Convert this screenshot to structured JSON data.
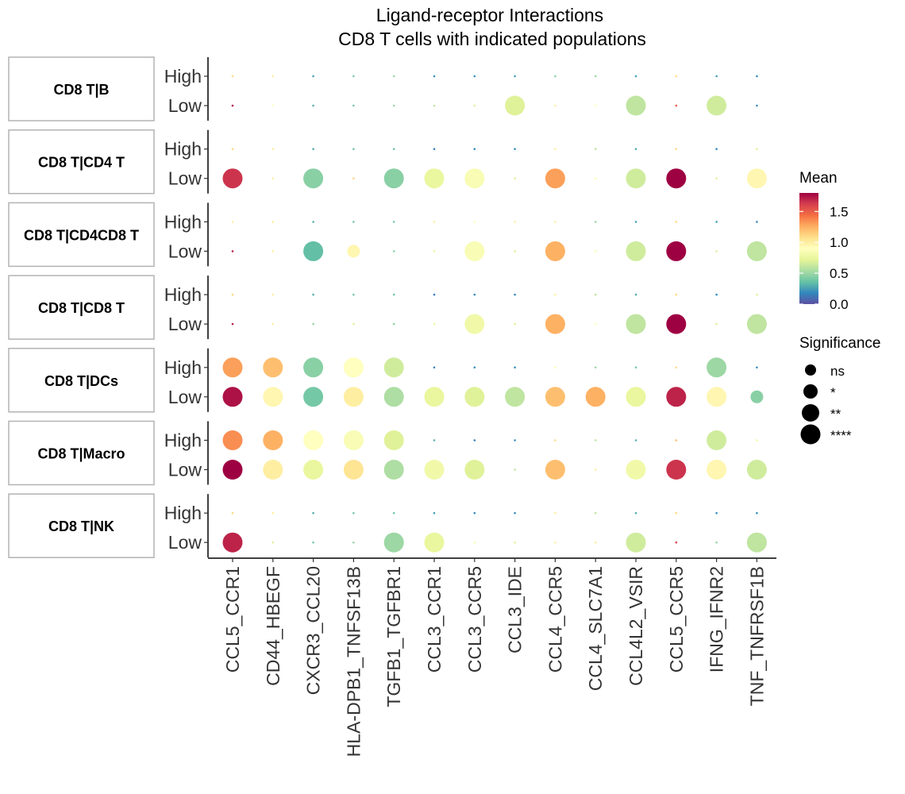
{
  "chart_data": {
    "type": "dot",
    "title": "Ligand-receptor Interactions",
    "subtitle": "CD8 T cells with indicated populations",
    "panels": [
      "CD8 T|B",
      "CD8 T|CD4 T",
      "CD8 T|CD4CD8 T",
      "CD8 T|CD8 T",
      "CD8 T|DCs",
      "CD8 T|Macro",
      "CD8 T|NK"
    ],
    "y_categories": [
      "High",
      "Low"
    ],
    "x_categories": [
      "CCL5_CCR1",
      "CD44_HBEGF",
      "CXCR3_CCL20",
      "HLA-DPB1_TNFSF13B",
      "TGFB1_TGFBR1",
      "CCL3_CCR1",
      "CCL3_CCR5",
      "CCL3_IDE",
      "CCL4_CCR5",
      "CCL4_SLC7A1",
      "CCL4L2_VSIR",
      "CCL5_CCR5",
      "IFNG_IFNR2",
      "TNF_TNFRSF1B"
    ],
    "mean": {
      "CD8 T|B": {
        "High": [
          1.1,
          1.0,
          0.25,
          0.4,
          0.5,
          0.2,
          0.2,
          0.25,
          0.45,
          0.5,
          0.25,
          1.1,
          0.25,
          0.2
        ],
        "Low": [
          1.75,
          0.9,
          0.3,
          0.4,
          0.5,
          0.6,
          0.7,
          0.7,
          1.0,
          0.9,
          0.6,
          1.5,
          0.65,
          0.2
        ]
      },
      "CD8 T|CD4 T": {
        "High": [
          1.1,
          1.0,
          0.3,
          0.4,
          0.4,
          0.15,
          0.2,
          0.2,
          1.0,
          0.6,
          0.3,
          1.1,
          0.2,
          0.7
        ],
        "Low": [
          1.65,
          1.0,
          0.45,
          1.1,
          0.45,
          0.75,
          0.85,
          0.7,
          1.3,
          0.9,
          0.65,
          1.8,
          0.7,
          0.95
        ]
      },
      "CD8 T|CD4CD8 T": {
        "High": [
          1.0,
          1.0,
          0.3,
          0.4,
          0.4,
          1.0,
          0.9,
          1.0,
          1.0,
          0.5,
          0.25,
          1.1,
          0.25,
          0.2
        ],
        "Low": [
          1.7,
          1.0,
          0.35,
          0.95,
          0.45,
          0.75,
          0.85,
          0.7,
          1.25,
          0.85,
          0.65,
          1.8,
          0.7,
          0.6
        ]
      },
      "CD8 T|CD8 T": {
        "High": [
          1.1,
          1.0,
          0.3,
          0.4,
          0.4,
          0.15,
          0.2,
          0.2,
          1.0,
          0.6,
          0.3,
          1.1,
          0.2,
          0.7
        ],
        "Low": [
          1.7,
          1.0,
          0.5,
          0.7,
          0.45,
          0.75,
          0.8,
          0.7,
          1.25,
          0.9,
          0.6,
          1.8,
          0.7,
          0.6
        ]
      },
      "CD8 T|DCs": {
        "High": [
          1.3,
          1.2,
          0.45,
          0.9,
          0.65,
          0.15,
          0.2,
          0.2,
          0.9,
          0.5,
          0.4,
          1.1,
          0.5,
          0.2
        ],
        "Low": [
          1.75,
          0.95,
          0.4,
          1.0,
          0.55,
          0.75,
          0.7,
          0.6,
          1.2,
          1.25,
          0.75,
          1.7,
          0.95,
          0.45
        ]
      },
      "CD8 T|Macro": {
        "High": [
          1.35,
          1.25,
          0.9,
          0.85,
          0.7,
          0.3,
          0.15,
          0.2,
          1.1,
          0.6,
          0.3,
          1.2,
          0.65,
          0.8
        ],
        "Low": [
          1.8,
          1.0,
          0.75,
          1.05,
          0.55,
          0.8,
          0.7,
          0.6,
          1.2,
          1.0,
          0.8,
          1.65,
          0.95,
          0.65
        ]
      },
      "CD8 T|NK": {
        "High": [
          1.1,
          1.0,
          0.3,
          0.4,
          0.4,
          0.25,
          0.2,
          0.2,
          1.0,
          0.6,
          0.3,
          1.1,
          0.2,
          0.2
        ],
        "Low": [
          1.7,
          0.7,
          0.4,
          0.5,
          0.5,
          0.75,
          0.85,
          0.7,
          1.0,
          1.0,
          0.65,
          1.6,
          0.5,
          0.6
        ]
      }
    },
    "significance": {
      "CD8 T|B": {
        "High": [
          "none",
          "none",
          "none",
          "none",
          "none",
          "none",
          "none",
          "none",
          "none",
          "none",
          "none",
          "none",
          "none",
          "none"
        ],
        "Low": [
          "none",
          "none",
          "none",
          "none",
          "none",
          "none",
          "none",
          "**",
          "none",
          "none",
          "**",
          "none",
          "**",
          "none"
        ]
      },
      "CD8 T|CD4 T": {
        "High": [
          "none",
          "none",
          "none",
          "none",
          "none",
          "none",
          "none",
          "none",
          "none",
          "none",
          "none",
          "none",
          "none",
          "none"
        ],
        "Low": [
          "**",
          "none",
          "**",
          "none",
          "**",
          "**",
          "**",
          "none",
          "**",
          "none",
          "**",
          "**",
          "none",
          "**"
        ]
      },
      "CD8 T|CD4CD8 T": {
        "High": [
          "none",
          "none",
          "none",
          "none",
          "none",
          "none",
          "none",
          "none",
          "none",
          "none",
          "none",
          "none",
          "none",
          "none"
        ],
        "Low": [
          "none",
          "none",
          "**",
          "ns",
          "none",
          "none",
          "**",
          "none",
          "**",
          "none",
          "**",
          "**",
          "none",
          "**"
        ]
      },
      "CD8 T|CD8 T": {
        "High": [
          "none",
          "none",
          "none",
          "none",
          "none",
          "none",
          "none",
          "none",
          "none",
          "none",
          "none",
          "none",
          "none",
          "none"
        ],
        "Low": [
          "none",
          "none",
          "none",
          "none",
          "none",
          "none",
          "**",
          "none",
          "**",
          "none",
          "**",
          "**",
          "none",
          "**"
        ]
      },
      "CD8 T|DCs": {
        "High": [
          "**",
          "**",
          "**",
          "**",
          "**",
          "none",
          "none",
          "none",
          "none",
          "none",
          "none",
          "none",
          "**",
          "none"
        ],
        "Low": [
          "**",
          "**",
          "**",
          "**",
          "**",
          "**",
          "**",
          "**",
          "**",
          "**",
          "**",
          "**",
          "**",
          "ns"
        ]
      },
      "CD8 T|Macro": {
        "High": [
          "**",
          "**",
          "**",
          "**",
          "**",
          "none",
          "none",
          "none",
          "none",
          "none",
          "none",
          "none",
          "**",
          "none"
        ],
        "Low": [
          "**",
          "**",
          "**",
          "**",
          "**",
          "**",
          "**",
          "none",
          "**",
          "none",
          "**",
          "**",
          "**",
          "**"
        ]
      },
      "CD8 T|NK": {
        "High": [
          "none",
          "none",
          "none",
          "none",
          "none",
          "none",
          "none",
          "none",
          "none",
          "none",
          "none",
          "none",
          "none",
          "none"
        ],
        "Low": [
          "**",
          "none",
          "none",
          "none",
          "**",
          "**",
          "none",
          "none",
          "none",
          "none",
          "**",
          "none",
          "none",
          "**"
        ]
      }
    },
    "color_scale": {
      "title": "Mean",
      "breaks": [
        "0.0",
        "0.5",
        "1.0",
        "1.5"
      ],
      "range": [
        0,
        1.8
      ],
      "palette": [
        "#5E4FA2",
        "#3288BD",
        "#66C2A5",
        "#ABDDA4",
        "#E6F598",
        "#FFFFBF",
        "#FEE08B",
        "#FDAE61",
        "#F46D43",
        "#D53E4F",
        "#9E0142"
      ]
    },
    "size_legend": {
      "title": "Significance",
      "levels": [
        "ns",
        "*",
        "**",
        "****"
      ]
    },
    "legend_position": "right"
  }
}
